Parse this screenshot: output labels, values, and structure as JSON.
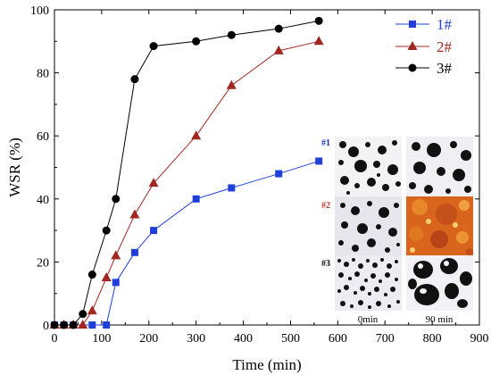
{
  "chart_data": {
    "type": "line",
    "xlabel": "Time (min)",
    "ylabel": "WSR (%)",
    "xlim": [
      0,
      900
    ],
    "ylim": [
      0,
      100
    ],
    "xticks": [
      0,
      100,
      200,
      300,
      400,
      500,
      600,
      700,
      800,
      900
    ],
    "yticks": [
      0,
      20,
      40,
      60,
      80,
      100
    ],
    "grid": false,
    "legend_position": "top-right",
    "series": [
      {
        "name": "1#",
        "color": "#1f3fd8",
        "marker": "square",
        "x": [
          0,
          20,
          40,
          80,
          110,
          130,
          170,
          210,
          300,
          375,
          475,
          560
        ],
        "y": [
          0,
          0,
          0,
          0,
          0,
          13.5,
          23,
          30,
          40,
          43.5,
          48,
          52
        ]
      },
      {
        "name": "2#",
        "color": "#a02820",
        "marker": "triangle",
        "x": [
          0,
          20,
          40,
          60,
          80,
          110,
          130,
          170,
          210,
          300,
          375,
          475,
          560
        ],
        "y": [
          0,
          0,
          0,
          0,
          4.5,
          15,
          22,
          35,
          45,
          60,
          76,
          87,
          90
        ]
      },
      {
        "name": "3#",
        "color": "#000000",
        "marker": "circle",
        "x": [
          0,
          20,
          40,
          60,
          80,
          110,
          130,
          170,
          210,
          300,
          375,
          475,
          560
        ],
        "y": [
          0,
          0,
          0,
          3.5,
          16,
          30,
          40,
          78,
          88.5,
          90,
          92,
          94,
          96.5
        ]
      }
    ],
    "inset": {
      "rows": [
        {
          "label": "#1",
          "label_color": "#1a2fb8"
        },
        {
          "label": "#2",
          "label_color": "#c0392b"
        },
        {
          "label": "#3",
          "label_color": "#000000"
        }
      ],
      "columns": [
        "0min",
        "90 min"
      ]
    }
  }
}
